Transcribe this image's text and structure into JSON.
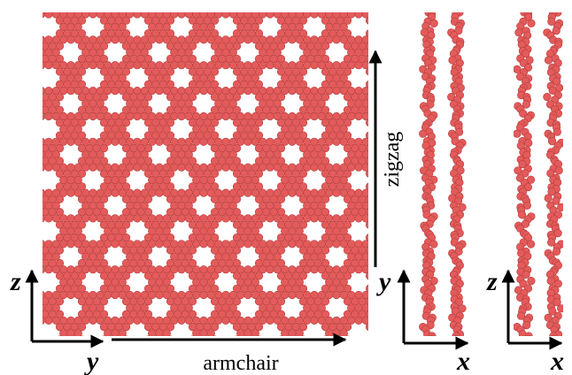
{
  "main_view": {
    "horizontal_direction": "armchair",
    "vertical_direction": "zigzag",
    "axes": {
      "vertical": "z",
      "horizontal": "y"
    }
  },
  "side_view_1": {
    "axes": {
      "vertical": "y",
      "horizontal": "x"
    }
  },
  "side_view_2": {
    "axes": {
      "vertical": "z",
      "horizontal": "x"
    }
  }
}
